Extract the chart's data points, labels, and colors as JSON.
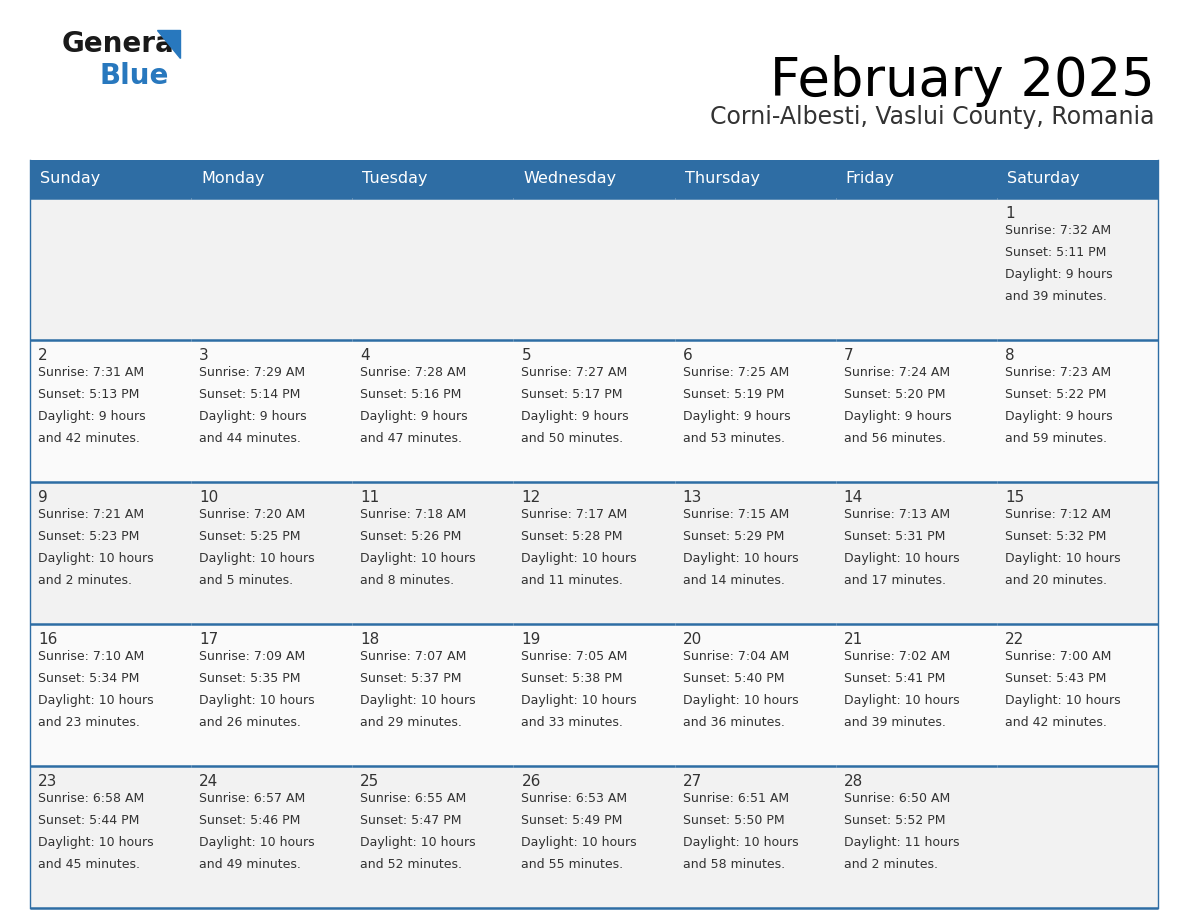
{
  "title": "February 2025",
  "subtitle": "Corni-Albesti, Vaslui County, Romania",
  "header_bg": "#2E6DA4",
  "header_text": "#FFFFFF",
  "cell_bg": "#F2F2F2",
  "border_color": "#2E6DA4",
  "text_color": "#333333",
  "day_headers": [
    "Sunday",
    "Monday",
    "Tuesday",
    "Wednesday",
    "Thursday",
    "Friday",
    "Saturday"
  ],
  "calendar_data": [
    [
      null,
      null,
      null,
      null,
      null,
      null,
      {
        "day": 1,
        "sunrise": "7:32 AM",
        "sunset": "5:11 PM",
        "daylight_line1": "9 hours",
        "daylight_line2": "and 39 minutes."
      }
    ],
    [
      {
        "day": 2,
        "sunrise": "7:31 AM",
        "sunset": "5:13 PM",
        "daylight_line1": "9 hours",
        "daylight_line2": "and 42 minutes."
      },
      {
        "day": 3,
        "sunrise": "7:29 AM",
        "sunset": "5:14 PM",
        "daylight_line1": "9 hours",
        "daylight_line2": "and 44 minutes."
      },
      {
        "day": 4,
        "sunrise": "7:28 AM",
        "sunset": "5:16 PM",
        "daylight_line1": "9 hours",
        "daylight_line2": "and 47 minutes."
      },
      {
        "day": 5,
        "sunrise": "7:27 AM",
        "sunset": "5:17 PM",
        "daylight_line1": "9 hours",
        "daylight_line2": "and 50 minutes."
      },
      {
        "day": 6,
        "sunrise": "7:25 AM",
        "sunset": "5:19 PM",
        "daylight_line1": "9 hours",
        "daylight_line2": "and 53 minutes."
      },
      {
        "day": 7,
        "sunrise": "7:24 AM",
        "sunset": "5:20 PM",
        "daylight_line1": "9 hours",
        "daylight_line2": "and 56 minutes."
      },
      {
        "day": 8,
        "sunrise": "7:23 AM",
        "sunset": "5:22 PM",
        "daylight_line1": "9 hours",
        "daylight_line2": "and 59 minutes."
      }
    ],
    [
      {
        "day": 9,
        "sunrise": "7:21 AM",
        "sunset": "5:23 PM",
        "daylight_line1": "10 hours",
        "daylight_line2": "and 2 minutes."
      },
      {
        "day": 10,
        "sunrise": "7:20 AM",
        "sunset": "5:25 PM",
        "daylight_line1": "10 hours",
        "daylight_line2": "and 5 minutes."
      },
      {
        "day": 11,
        "sunrise": "7:18 AM",
        "sunset": "5:26 PM",
        "daylight_line1": "10 hours",
        "daylight_line2": "and 8 minutes."
      },
      {
        "day": 12,
        "sunrise": "7:17 AM",
        "sunset": "5:28 PM",
        "daylight_line1": "10 hours",
        "daylight_line2": "and 11 minutes."
      },
      {
        "day": 13,
        "sunrise": "7:15 AM",
        "sunset": "5:29 PM",
        "daylight_line1": "10 hours",
        "daylight_line2": "and 14 minutes."
      },
      {
        "day": 14,
        "sunrise": "7:13 AM",
        "sunset": "5:31 PM",
        "daylight_line1": "10 hours",
        "daylight_line2": "and 17 minutes."
      },
      {
        "day": 15,
        "sunrise": "7:12 AM",
        "sunset": "5:32 PM",
        "daylight_line1": "10 hours",
        "daylight_line2": "and 20 minutes."
      }
    ],
    [
      {
        "day": 16,
        "sunrise": "7:10 AM",
        "sunset": "5:34 PM",
        "daylight_line1": "10 hours",
        "daylight_line2": "and 23 minutes."
      },
      {
        "day": 17,
        "sunrise": "7:09 AM",
        "sunset": "5:35 PM",
        "daylight_line1": "10 hours",
        "daylight_line2": "and 26 minutes."
      },
      {
        "day": 18,
        "sunrise": "7:07 AM",
        "sunset": "5:37 PM",
        "daylight_line1": "10 hours",
        "daylight_line2": "and 29 minutes."
      },
      {
        "day": 19,
        "sunrise": "7:05 AM",
        "sunset": "5:38 PM",
        "daylight_line1": "10 hours",
        "daylight_line2": "and 33 minutes."
      },
      {
        "day": 20,
        "sunrise": "7:04 AM",
        "sunset": "5:40 PM",
        "daylight_line1": "10 hours",
        "daylight_line2": "and 36 minutes."
      },
      {
        "day": 21,
        "sunrise": "7:02 AM",
        "sunset": "5:41 PM",
        "daylight_line1": "10 hours",
        "daylight_line2": "and 39 minutes."
      },
      {
        "day": 22,
        "sunrise": "7:00 AM",
        "sunset": "5:43 PM",
        "daylight_line1": "10 hours",
        "daylight_line2": "and 42 minutes."
      }
    ],
    [
      {
        "day": 23,
        "sunrise": "6:58 AM",
        "sunset": "5:44 PM",
        "daylight_line1": "10 hours",
        "daylight_line2": "and 45 minutes."
      },
      {
        "day": 24,
        "sunrise": "6:57 AM",
        "sunset": "5:46 PM",
        "daylight_line1": "10 hours",
        "daylight_line2": "and 49 minutes."
      },
      {
        "day": 25,
        "sunrise": "6:55 AM",
        "sunset": "5:47 PM",
        "daylight_line1": "10 hours",
        "daylight_line2": "and 52 minutes."
      },
      {
        "day": 26,
        "sunrise": "6:53 AM",
        "sunset": "5:49 PM",
        "daylight_line1": "10 hours",
        "daylight_line2": "and 55 minutes."
      },
      {
        "day": 27,
        "sunrise": "6:51 AM",
        "sunset": "5:50 PM",
        "daylight_line1": "10 hours",
        "daylight_line2": "and 58 minutes."
      },
      {
        "day": 28,
        "sunrise": "6:50 AM",
        "sunset": "5:52 PM",
        "daylight_line1": "11 hours",
        "daylight_line2": "and 2 minutes."
      },
      null
    ]
  ]
}
